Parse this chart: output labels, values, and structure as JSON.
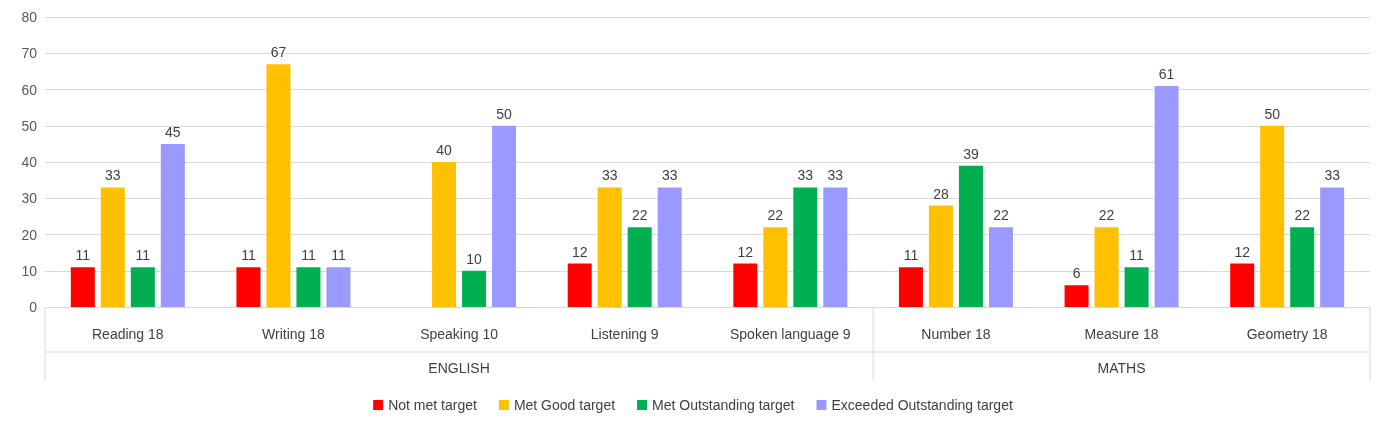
{
  "chart_data": {
    "type": "bar",
    "categories": [
      "Reading 18",
      "Writing 18",
      "Speaking 10",
      "Listening 9",
      "Spoken language 9",
      "Number 18",
      "Measure 18",
      "Geometry 18"
    ],
    "series": [
      {
        "name": "Not met target",
        "color": "#ff0000",
        "values": [
          11,
          11,
          null,
          12,
          12,
          11,
          6,
          12
        ]
      },
      {
        "name": "Met Good target",
        "color": "#ffc000",
        "values": [
          33,
          67,
          40,
          33,
          22,
          28,
          22,
          50
        ]
      },
      {
        "name": "Met Outstanding target",
        "color": "#00b050",
        "values": [
          11,
          11,
          10,
          22,
          33,
          39,
          11,
          22
        ]
      },
      {
        "name": "Exceeded Outstanding target",
        "color": "#9999ff",
        "values": [
          45,
          11,
          50,
          33,
          33,
          22,
          61,
          33
        ]
      }
    ],
    "annotations": [
      "ENGLISH",
      "MATHS"
    ],
    "ylim": [
      0,
      80
    ],
    "yticks": [
      0,
      10,
      20,
      30,
      40,
      50,
      60,
      70,
      80
    ],
    "grid": "y",
    "data_labels": true,
    "legend": "bottom"
  }
}
